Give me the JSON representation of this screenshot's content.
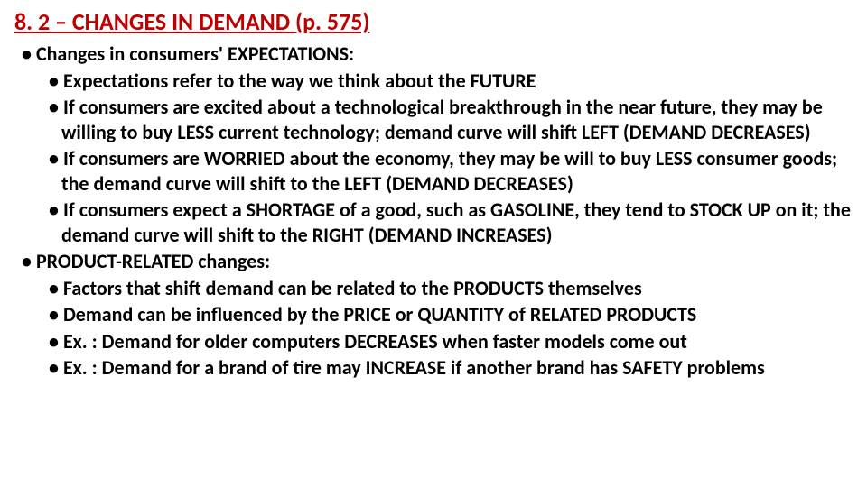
{
  "title": "8. 2 – CHANGES IN DEMAND (p. 575)",
  "colors": {
    "title": "#c00000",
    "text": "#000000",
    "bg": "#ffffff"
  },
  "fontsize": {
    "title": 26,
    "body": 22
  },
  "bullets": {
    "a": "Changes in consumers' EXPECTATIONS:",
    "a1": "Expectations refer to the way we think about the FUTURE",
    "a2": "If consumers are excited about a technological breakthrough in the near future, they may be willing to buy LESS current technology; demand curve will shift LEFT (DEMAND DECREASES)",
    "a3": "If consumers are WORRIED about the economy, they may be will to buy LESS consumer goods; the demand curve will shift to the LEFT (DEMAND DECREASES)",
    "a4": "If consumers expect a SHORTAGE of a good, such as GASOLINE, they tend to STOCK UP on it; the demand curve will shift to the RIGHT (DEMAND INCREASES)",
    "b": "PRODUCT-RELATED changes:",
    "b1": "Factors that shift demand can be related to the PRODUCTS themselves",
    "b2": "Demand can be influenced by the PRICE or QUANTITY of RELATED PRODUCTS",
    "b3": "Ex. : Demand for older computers DECREASES when faster models come out",
    "b4": "Ex. : Demand for a brand of tire may INCREASE if another brand has SAFETY problems"
  }
}
